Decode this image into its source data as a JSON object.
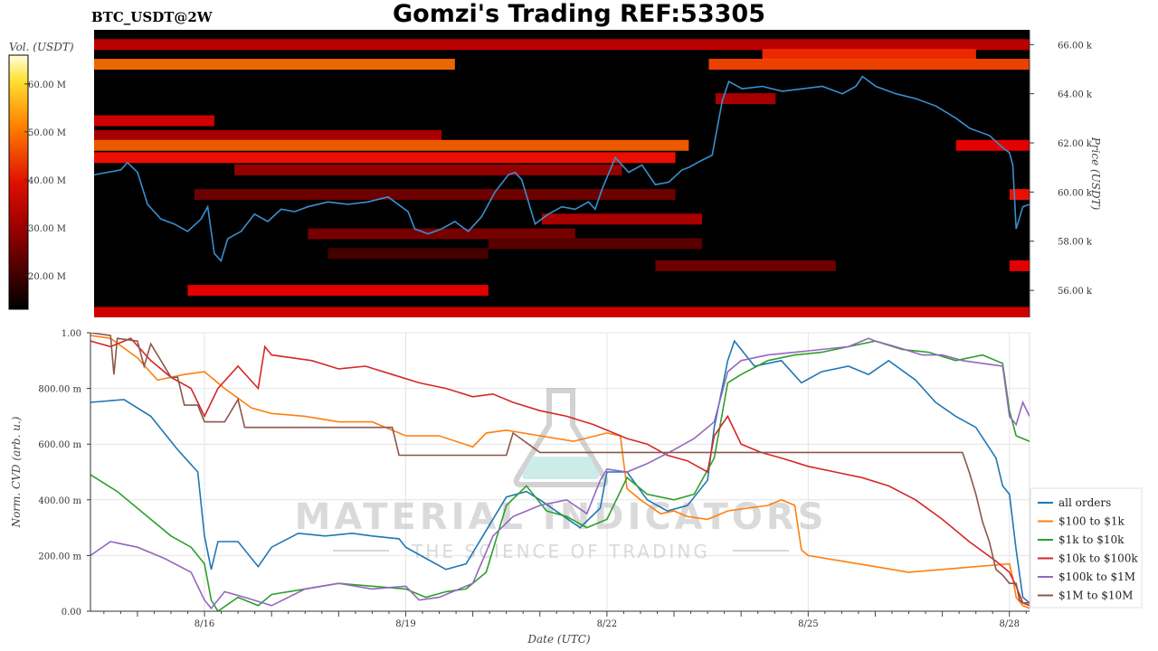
{
  "header": {
    "title": "Gomzi's Trading REF:53305",
    "pair": "BTC_USDT@2W"
  },
  "watermark": {
    "main": "MATERIAL INDICATORS",
    "sub": "THE SCIENCE OF TRADING"
  },
  "colors": {
    "heatmap_bg": "#000000",
    "price_line": "#3a8fd0",
    "series": [
      "#1f77b4",
      "#ff7f0e",
      "#2ca02c",
      "#d62728",
      "#9467bd",
      "#8c564b"
    ]
  },
  "chart_data": [
    {
      "type": "heatmap",
      "colorbar": {
        "label": "Vol. (USDT)",
        "ticks": [
          "20.00 M",
          "30.00 M",
          "40.00 M",
          "50.00 M",
          "60.00 M"
        ],
        "tick_values": [
          20,
          30,
          40,
          50,
          60
        ],
        "range": [
          13,
          66
        ],
        "colormap": "hot"
      },
      "ylabel": "Price (USDT)",
      "yticks": [
        "56.00 k",
        "58.00 k",
        "60.00 k",
        "62.00 k",
        "64.00 k",
        "66.00 k"
      ],
      "ytick_values": [
        56000,
        58000,
        60000,
        62000,
        64000,
        66000
      ],
      "ylim": [
        54900,
        66600
      ],
      "xlim": [
        14.3,
        28.3
      ],
      "bands": [
        {
          "price": 66000,
          "x0": 14.3,
          "x1": 28.3,
          "vol": 32
        },
        {
          "price": 65600,
          "x0": 24.3,
          "x1": 27.5,
          "vol": 40
        },
        {
          "price": 65200,
          "x0": 14.3,
          "x1": 19.7,
          "vol": 45
        },
        {
          "price": 65200,
          "x0": 23.5,
          "x1": 28.3,
          "vol": 42
        },
        {
          "price": 63800,
          "x0": 23.6,
          "x1": 24.5,
          "vol": 30
        },
        {
          "price": 62900,
          "x0": 14.3,
          "x1": 16.1,
          "vol": 34
        },
        {
          "price": 62300,
          "x0": 14.3,
          "x1": 19.5,
          "vol": 30
        },
        {
          "price": 61900,
          "x0": 14.3,
          "x1": 23.2,
          "vol": 44
        },
        {
          "price": 61400,
          "x0": 14.3,
          "x1": 23.0,
          "vol": 38
        },
        {
          "price": 61900,
          "x0": 27.2,
          "x1": 28.3,
          "vol": 36
        },
        {
          "price": 60900,
          "x0": 16.4,
          "x1": 22.2,
          "vol": 28
        },
        {
          "price": 59900,
          "x0": 15.8,
          "x1": 23.0,
          "vol": 24
        },
        {
          "price": 58900,
          "x0": 21.0,
          "x1": 23.4,
          "vol": 30
        },
        {
          "price": 58300,
          "x0": 17.5,
          "x1": 21.5,
          "vol": 25
        },
        {
          "price": 57900,
          "x0": 20.2,
          "x1": 23.4,
          "vol": 22
        },
        {
          "price": 57500,
          "x0": 17.8,
          "x1": 20.2,
          "vol": 20
        },
        {
          "price": 57000,
          "x0": 22.7,
          "x1": 25.4,
          "vol": 24
        },
        {
          "price": 56000,
          "x0": 15.7,
          "x1": 20.2,
          "vol": 36
        },
        {
          "price": 55100,
          "x0": 14.3,
          "x1": 28.3,
          "vol": 34
        },
        {
          "price": 57000,
          "x0": 28.0,
          "x1": 28.3,
          "vol": 36
        },
        {
          "price": 59900,
          "x0": 28.0,
          "x1": 28.3,
          "vol": 38
        }
      ],
      "price_series": {
        "name": "Price",
        "x": [
          14.3,
          14.5,
          14.7,
          14.8,
          14.95,
          15.1,
          15.3,
          15.5,
          15.7,
          15.9,
          16.0,
          16.1,
          16.2,
          16.3,
          16.5,
          16.7,
          16.9,
          17.1,
          17.3,
          17.5,
          17.8,
          18.1,
          18.4,
          18.7,
          18.9,
          19.0,
          19.1,
          19.3,
          19.5,
          19.7,
          19.9,
          20.1,
          20.3,
          20.5,
          20.6,
          20.7,
          20.9,
          21.1,
          21.3,
          21.5,
          21.7,
          21.8,
          21.9,
          22.1,
          22.3,
          22.5,
          22.7,
          22.9,
          23.1,
          23.2,
          23.4,
          23.55,
          23.7,
          23.8,
          24.0,
          24.3,
          24.6,
          24.9,
          25.2,
          25.5,
          25.7,
          25.8,
          26.0,
          26.3,
          26.6,
          26.9,
          27.2,
          27.4,
          27.7,
          27.9,
          28.0,
          28.05,
          28.1,
          28.2,
          28.3
        ],
        "y": [
          60.7,
          60.8,
          60.9,
          61.2,
          60.8,
          59.5,
          58.9,
          58.7,
          58.4,
          58.9,
          59.4,
          57.5,
          57.2,
          58.1,
          58.4,
          59.1,
          58.8,
          59.3,
          59.2,
          59.4,
          59.6,
          59.5,
          59.6,
          59.8,
          59.4,
          59.2,
          58.5,
          58.3,
          58.5,
          58.8,
          58.4,
          59.0,
          60.0,
          60.7,
          60.8,
          60.5,
          58.7,
          59.1,
          59.4,
          59.3,
          59.6,
          59.3,
          60.1,
          61.4,
          60.8,
          61.1,
          60.3,
          60.4,
          60.9,
          61.0,
          61.3,
          61.5,
          63.7,
          64.5,
          64.2,
          64.3,
          64.1,
          64.2,
          64.3,
          64.0,
          64.3,
          64.7,
          64.3,
          64.0,
          63.8,
          63.5,
          63.0,
          62.6,
          62.3,
          61.8,
          61.6,
          61.1,
          58.5,
          59.4,
          59.5
        ]
      }
    },
    {
      "type": "line",
      "xlabel": "Date (UTC)",
      "ylabel": "Norm. CVD (arb. u.)",
      "xticks": [
        "8/16",
        "8/19",
        "8/22",
        "8/25",
        "8/28"
      ],
      "xtick_values": [
        16,
        19,
        22,
        25,
        28
      ],
      "xlim": [
        14.3,
        28.3
      ],
      "yticks": [
        "0.00",
        "200.00 m",
        "400.00 m",
        "600.00 m",
        "800.00 m",
        "1.00"
      ],
      "ytick_values": [
        0,
        0.2,
        0.4,
        0.6,
        0.8,
        1.0
      ],
      "ylim": [
        0,
        1.0
      ],
      "grid": true,
      "legend_position": "bottom-right",
      "series": [
        {
          "name": "all orders",
          "color": "#1f77b4",
          "x": [
            14.3,
            14.8,
            15.2,
            15.6,
            15.9,
            16.0,
            16.1,
            16.2,
            16.5,
            16.8,
            17.0,
            17.4,
            17.8,
            18.2,
            18.5,
            18.9,
            19.0,
            19.3,
            19.6,
            19.9,
            20.2,
            20.5,
            20.8,
            21.0,
            21.3,
            21.6,
            21.9,
            22.0,
            22.3,
            22.6,
            22.9,
            23.2,
            23.5,
            23.6,
            23.8,
            23.9,
            24.2,
            24.6,
            24.9,
            25.2,
            25.6,
            25.9,
            26.2,
            26.6,
            26.9,
            27.2,
            27.5,
            27.8,
            27.9,
            28.0,
            28.1,
            28.2,
            28.3
          ],
          "y": [
            0.75,
            0.76,
            0.7,
            0.58,
            0.5,
            0.27,
            0.15,
            0.25,
            0.25,
            0.16,
            0.23,
            0.28,
            0.27,
            0.28,
            0.27,
            0.26,
            0.23,
            0.19,
            0.15,
            0.17,
            0.29,
            0.41,
            0.43,
            0.4,
            0.35,
            0.3,
            0.37,
            0.5,
            0.5,
            0.4,
            0.36,
            0.38,
            0.47,
            0.66,
            0.9,
            0.97,
            0.88,
            0.9,
            0.82,
            0.86,
            0.88,
            0.85,
            0.9,
            0.83,
            0.75,
            0.7,
            0.66,
            0.55,
            0.45,
            0.42,
            0.22,
            0.05,
            0.03
          ]
        },
        {
          "name": "$100 to $1k",
          "color": "#ff7f0e",
          "x": [
            14.3,
            14.6,
            15.0,
            15.3,
            15.7,
            16.0,
            16.3,
            16.7,
            17.0,
            17.5,
            18.0,
            18.5,
            19.0,
            19.5,
            20.0,
            20.2,
            20.5,
            21.0,
            21.5,
            22.0,
            22.2,
            22.3,
            22.5,
            22.8,
            23.0,
            23.2,
            23.5,
            23.8,
            24.1,
            24.4,
            24.6,
            24.8,
            24.9,
            25.0,
            25.5,
            26.0,
            26.5,
            27.0,
            27.5,
            28.0,
            28.05,
            28.1,
            28.2,
            28.3
          ],
          "y": [
            0.99,
            0.98,
            0.91,
            0.83,
            0.85,
            0.86,
            0.8,
            0.73,
            0.71,
            0.7,
            0.68,
            0.68,
            0.63,
            0.63,
            0.59,
            0.64,
            0.65,
            0.63,
            0.61,
            0.64,
            0.63,
            0.44,
            0.4,
            0.35,
            0.36,
            0.34,
            0.33,
            0.36,
            0.37,
            0.38,
            0.4,
            0.38,
            0.22,
            0.2,
            0.18,
            0.16,
            0.14,
            0.15,
            0.16,
            0.17,
            0.12,
            0.05,
            0.02,
            0.01
          ]
        },
        {
          "name": "$1k to $10k",
          "color": "#2ca02c",
          "x": [
            14.3,
            14.7,
            15.1,
            15.5,
            15.8,
            16.0,
            16.1,
            16.2,
            16.5,
            16.8,
            17.0,
            17.5,
            18.0,
            18.5,
            19.0,
            19.3,
            19.6,
            19.9,
            20.2,
            20.5,
            20.8,
            21.1,
            21.4,
            21.7,
            22.0,
            22.3,
            22.6,
            23.0,
            23.3,
            23.6,
            23.8,
            24.0,
            24.4,
            24.8,
            25.2,
            25.6,
            26.0,
            26.4,
            26.8,
            27.2,
            27.6,
            27.9,
            28.0,
            28.1,
            28.3
          ],
          "y": [
            0.49,
            0.43,
            0.35,
            0.27,
            0.23,
            0.17,
            0.04,
            0.0,
            0.05,
            0.02,
            0.06,
            0.08,
            0.1,
            0.09,
            0.08,
            0.05,
            0.07,
            0.08,
            0.14,
            0.38,
            0.45,
            0.36,
            0.34,
            0.3,
            0.33,
            0.48,
            0.42,
            0.4,
            0.42,
            0.55,
            0.82,
            0.85,
            0.9,
            0.92,
            0.93,
            0.95,
            0.97,
            0.94,
            0.93,
            0.9,
            0.92,
            0.89,
            0.72,
            0.63,
            0.61
          ]
        },
        {
          "name": "$10k to $100k",
          "color": "#d62728",
          "x": [
            14.3,
            14.6,
            14.9,
            15.2,
            15.5,
            15.8,
            16.0,
            16.2,
            16.5,
            16.8,
            16.9,
            17.0,
            17.3,
            17.6,
            18.0,
            18.4,
            18.8,
            19.2,
            19.6,
            20.0,
            20.3,
            20.6,
            21.0,
            21.4,
            21.8,
            22.0,
            22.3,
            22.6,
            22.9,
            23.2,
            23.5,
            23.6,
            23.8,
            24.0,
            24.3,
            24.6,
            25.0,
            25.4,
            25.8,
            26.2,
            26.6,
            27.0,
            27.4,
            27.8,
            28.0,
            28.1,
            28.2,
            28.3
          ],
          "y": [
            0.97,
            0.95,
            0.98,
            0.9,
            0.84,
            0.8,
            0.7,
            0.8,
            0.88,
            0.8,
            0.95,
            0.92,
            0.91,
            0.9,
            0.87,
            0.88,
            0.85,
            0.82,
            0.8,
            0.77,
            0.78,
            0.75,
            0.72,
            0.7,
            0.67,
            0.65,
            0.62,
            0.6,
            0.56,
            0.54,
            0.5,
            0.63,
            0.7,
            0.6,
            0.57,
            0.55,
            0.52,
            0.5,
            0.48,
            0.45,
            0.4,
            0.33,
            0.25,
            0.18,
            0.14,
            0.09,
            0.03,
            0.02
          ]
        },
        {
          "name": "$100k to $1M",
          "color": "#9467bd",
          "x": [
            14.3,
            14.6,
            15.0,
            15.4,
            15.8,
            16.0,
            16.1,
            16.3,
            16.6,
            17.0,
            17.5,
            18.0,
            18.5,
            19.0,
            19.2,
            19.5,
            20.0,
            20.3,
            20.6,
            21.0,
            21.4,
            21.7,
            21.9,
            22.0,
            22.3,
            22.6,
            23.0,
            23.3,
            23.6,
            23.8,
            24.0,
            24.4,
            24.8,
            25.2,
            25.6,
            25.9,
            26.0,
            26.3,
            26.7,
            27.0,
            27.3,
            27.6,
            27.9,
            28.0,
            28.1,
            28.2,
            28.3
          ],
          "y": [
            0.2,
            0.25,
            0.23,
            0.19,
            0.14,
            0.04,
            0.01,
            0.07,
            0.05,
            0.02,
            0.08,
            0.1,
            0.08,
            0.09,
            0.04,
            0.05,
            0.1,
            0.27,
            0.34,
            0.38,
            0.4,
            0.35,
            0.47,
            0.51,
            0.5,
            0.53,
            0.58,
            0.62,
            0.68,
            0.86,
            0.9,
            0.92,
            0.93,
            0.94,
            0.95,
            0.98,
            0.97,
            0.95,
            0.92,
            0.92,
            0.9,
            0.89,
            0.88,
            0.7,
            0.67,
            0.75,
            0.7
          ]
        },
        {
          "name": "$1M to $10M",
          "color": "#8c564b",
          "x": [
            14.3,
            14.6,
            14.65,
            14.7,
            15.0,
            15.1,
            15.2,
            15.5,
            15.6,
            15.7,
            15.9,
            16.0,
            16.3,
            16.5,
            16.6,
            17.0,
            18.0,
            18.8,
            18.9,
            19.5,
            20.0,
            20.5,
            20.6,
            21.0,
            21.5,
            22.0,
            22.5,
            23.0,
            23.5,
            24.0,
            24.5,
            25.0,
            25.5,
            26.0,
            26.5,
            27.0,
            27.3,
            27.4,
            27.5,
            27.6,
            27.7,
            27.8,
            27.9,
            28.0,
            28.1,
            28.15,
            28.2,
            28.3
          ],
          "y": [
            1.0,
            0.99,
            0.85,
            0.98,
            0.97,
            0.88,
            0.96,
            0.84,
            0.84,
            0.74,
            0.74,
            0.68,
            0.68,
            0.76,
            0.66,
            0.66,
            0.66,
            0.66,
            0.56,
            0.56,
            0.56,
            0.56,
            0.64,
            0.57,
            0.57,
            0.57,
            0.57,
            0.57,
            0.57,
            0.57,
            0.57,
            0.57,
            0.57,
            0.57,
            0.57,
            0.57,
            0.57,
            0.5,
            0.42,
            0.32,
            0.25,
            0.15,
            0.13,
            0.1,
            0.1,
            0.04,
            0.03,
            0.03
          ]
        }
      ]
    }
  ]
}
